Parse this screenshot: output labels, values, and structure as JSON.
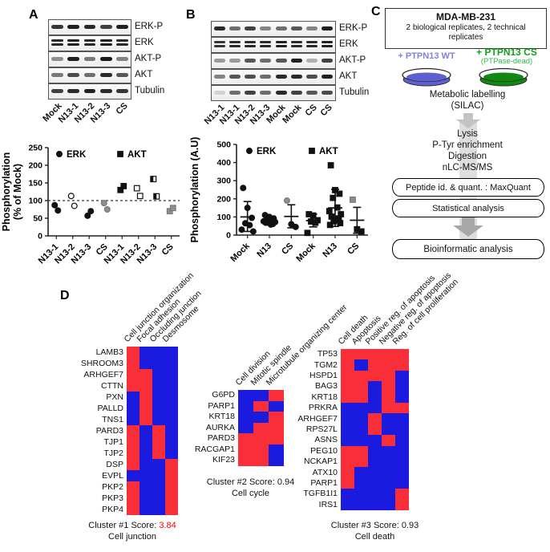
{
  "figure": {
    "panel_a_label": "A",
    "panel_b_label": "B",
    "panel_c_label": "C",
    "panel_d_label": "D"
  },
  "panel_a": {
    "blot": {
      "rows": [
        "ERK-P",
        "ERK",
        "AKT-P",
        "AKT",
        "Tubulin"
      ],
      "lanes": [
        "Mock",
        "N13-1",
        "N13-2",
        "N13-3",
        "CS"
      ]
    }
  },
  "panel_b": {
    "blot": {
      "rows": [
        "ERK-P",
        "ERK",
        "AKT-P",
        "AKT",
        "Tubulin"
      ],
      "lanes": [
        "N13-1",
        "N13-1",
        "N13-2",
        "N13-3",
        "Mock",
        "Mock",
        "CS",
        "CS"
      ]
    }
  },
  "panel_c": {
    "box_title": "MDA-MB-231",
    "box_subtitle": "2 biological replicates, 2 technical replicates",
    "wt_label": "+ PTPN13 WT",
    "cs_label": "+ PTPN13 CS",
    "cs_sublabel": "(PTPase-dead)",
    "metabolic": "Metabolic labelling",
    "silac": "(SILAC)",
    "steps": [
      "Lysis",
      "P-Tyr enrichment",
      "Digestion",
      "nLC-MS/MS"
    ],
    "maxquant_box": "Peptide id. & quant. : MaxQuant",
    "statistical_box": "Statistical analysis",
    "bioinformatic_box": "Bioinformatic analysis",
    "wt_color": "#8282d8",
    "cs_color": "#12a11c",
    "dish_wt_color": "#5f5fd0",
    "dish_cs_color": "#128812"
  },
  "chart_data": [
    {
      "type": "scatter",
      "name": "panel-a-quantification",
      "ylabel_lines": [
        "Phosphorylation",
        "(% of Mock)"
      ],
      "ylim": [
        0,
        250
      ],
      "yticks": [
        0,
        50,
        100,
        150,
        200,
        250
      ],
      "categories": [
        "N13-1",
        "N13-2",
        "N13-3",
        "CS",
        "N13-1",
        "N13-2",
        "N13-3",
        "CS"
      ],
      "legend": [
        {
          "label": "ERK",
          "marker": "circle"
        },
        {
          "label": "AKT",
          "marker": "square"
        }
      ],
      "reference_line": 100,
      "points": [
        {
          "cat": 0,
          "v": 87,
          "marker": "circle",
          "s": "filled"
        },
        {
          "cat": 0,
          "v": 72,
          "marker": "circle",
          "s": "filled"
        },
        {
          "cat": 1,
          "v": 113,
          "marker": "circle",
          "s": "open"
        },
        {
          "cat": 1,
          "v": 85,
          "marker": "circle",
          "s": "open"
        },
        {
          "cat": 2,
          "v": 57,
          "marker": "circle",
          "s": "filled"
        },
        {
          "cat": 2,
          "v": 70,
          "marker": "circle",
          "s": "filled"
        },
        {
          "cat": 3,
          "v": 93,
          "marker": "circle",
          "s": "gray"
        },
        {
          "cat": 3,
          "v": 75,
          "marker": "circle",
          "s": "gray"
        },
        {
          "cat": 4,
          "v": 130,
          "marker": "square",
          "s": "filled"
        },
        {
          "cat": 4,
          "v": 141,
          "marker": "square",
          "s": "filled"
        },
        {
          "cat": 5,
          "v": 135,
          "marker": "square",
          "s": "open"
        },
        {
          "cat": 5,
          "v": 113,
          "marker": "square",
          "s": "open"
        },
        {
          "cat": 6,
          "v": 161,
          "marker": "square",
          "s": "half"
        },
        {
          "cat": 6,
          "v": 112,
          "marker": "square",
          "s": "half"
        },
        {
          "cat": 7,
          "v": 70,
          "marker": "square",
          "s": "gray"
        },
        {
          "cat": 7,
          "v": 79,
          "marker": "square",
          "s": "gray"
        }
      ]
    },
    {
      "type": "scatter",
      "name": "panel-b-quantification",
      "ylabel_lines": [
        "Phosphorylation (A.U)"
      ],
      "ylim": [
        0,
        500
      ],
      "yticks": [
        0,
        100,
        200,
        300,
        400,
        500
      ],
      "categories": [
        "Mock",
        "N13",
        "CS",
        "Mock",
        "N13",
        "CS"
      ],
      "legend": [
        {
          "label": "ERK",
          "marker": "circle"
        },
        {
          "label": "AKT",
          "marker": "square"
        }
      ],
      "groups": [
        {
          "cat": 0,
          "marker": "circle",
          "mean": 100,
          "low": 20,
          "high": 185,
          "points": [
            {
              "v": 260
            },
            {
              "v": 150
            },
            {
              "v": 95
            },
            {
              "v": 65
            },
            {
              "v": 55
            },
            {
              "v": 30
            },
            {
              "v": 20
            }
          ]
        },
        {
          "cat": 1,
          "marker": "circle",
          "mean": 76,
          "low": 56,
          "high": 96,
          "points": [
            {
              "v": 110
            },
            {
              "v": 100
            },
            {
              "v": 92
            },
            {
              "v": 85
            },
            {
              "v": 80
            },
            {
              "v": 76
            },
            {
              "v": 72
            },
            {
              "v": 68
            },
            {
              "v": 62
            },
            {
              "v": 58
            }
          ]
        },
        {
          "cat": 2,
          "marker": "circle",
          "mean": 103,
          "low": 40,
          "high": 167,
          "points": [
            {
              "v": 190,
              "s": "gray"
            },
            {
              "v": 60
            },
            {
              "v": 45
            }
          ]
        },
        {
          "cat": 3,
          "marker": "square",
          "mean": 80,
          "low": 45,
          "high": 115,
          "points": [
            {
              "v": 115
            },
            {
              "v": 108
            },
            {
              "v": 82
            },
            {
              "v": 75
            },
            {
              "v": 68
            },
            {
              "v": 12
            }
          ]
        },
        {
          "cat": 4,
          "marker": "square",
          "mean": 150,
          "low": 48,
          "high": 252,
          "points": [
            {
              "v": 385
            },
            {
              "v": 248
            },
            {
              "v": 228
            },
            {
              "v": 205
            },
            {
              "v": 152
            },
            {
              "v": 132
            },
            {
              "v": 115
            },
            {
              "v": 102
            },
            {
              "v": 92
            },
            {
              "v": 84
            },
            {
              "v": 76
            },
            {
              "v": 66
            },
            {
              "v": 56
            }
          ]
        },
        {
          "cat": 5,
          "marker": "square",
          "mean": 82,
          "low": 10,
          "high": 153,
          "points": [
            {
              "v": 195,
              "s": "gray"
            },
            {
              "v": 32
            },
            {
              "v": 20
            }
          ]
        }
      ]
    },
    {
      "type": "heatmap",
      "name": "cluster-1",
      "columns": [
        "Cell junction organization",
        "Focal adhesion",
        "Occluding junction",
        "Desmosome"
      ],
      "genes": [
        "LAMB3",
        "SHROOM3",
        "ARHGEF7",
        "CTTN",
        "PXN",
        "PALLD",
        "TNS1",
        "PARD3",
        "TJP1",
        "TJP2",
        "DSP",
        "EVPL",
        "PKP2",
        "PKP3",
        "PKP4"
      ],
      "matrix": [
        "RBBB",
        "RBBB",
        "RRBB",
        "RRBB",
        "BRBB",
        "BRBB",
        "BRBB",
        "RBRB",
        "RBRB",
        "RBRB",
        "RBBR",
        "BBBR",
        "RBBR",
        "RBBR",
        "RBBR"
      ],
      "caption_prefix": "Cluster #1 Score: ",
      "score": "3.84",
      "score_color": "#ff0000",
      "caption": "Cell junction"
    },
    {
      "type": "heatmap",
      "name": "cluster-2",
      "columns": [
        "Cell division",
        "Mitotic spindle",
        "Microtubule organizing center"
      ],
      "genes": [
        "G6PD",
        "PARP1",
        "KRT18",
        "AURKA",
        "PARD3",
        "RACGAP1",
        "KIF23"
      ],
      "matrix": [
        "BBR",
        "BRB",
        "BBR",
        "BRR",
        "RRR",
        "RRB",
        "RRB"
      ],
      "caption_prefix": "Cluster #2 Score: ",
      "score": "0.94",
      "score_color": "#111111",
      "caption": "Cell cycle"
    },
    {
      "type": "heatmap",
      "name": "cluster-3",
      "columns": [
        "Cell death",
        "Apoptosis",
        "Positive reg. of apoptosis",
        "Negative reg. of apoptosis",
        "Reg. of cell proliferation"
      ],
      "genes": [
        "TP53",
        "TGM2",
        "HSPD1",
        "BAG3",
        "KRT18",
        "PRKRA",
        "ARHGEF7",
        "RPS27L",
        "ASNS",
        "PEG10",
        "NCKAP1",
        "ATX10",
        "PARP1",
        "TGFB1I1",
        "IRS1"
      ],
      "matrix": [
        "RRRRR",
        "RBRRR",
        "RRRRB",
        "RRBRB",
        "RRBRB",
        "BBBRR",
        "BBRBB",
        "BBRBB",
        "BBBRB",
        "RRBBB",
        "RRBBB",
        "RBBBB",
        "RBBBB",
        "BBBBR",
        "BBBBR"
      ],
      "caption_prefix": "Cluster #3 Score: ",
      "score": "0.93",
      "score_color": "#111111",
      "caption": "Cell death"
    }
  ],
  "heatmap_colors": {
    "red": "#fa2e38",
    "blue": "#1b1be0"
  }
}
